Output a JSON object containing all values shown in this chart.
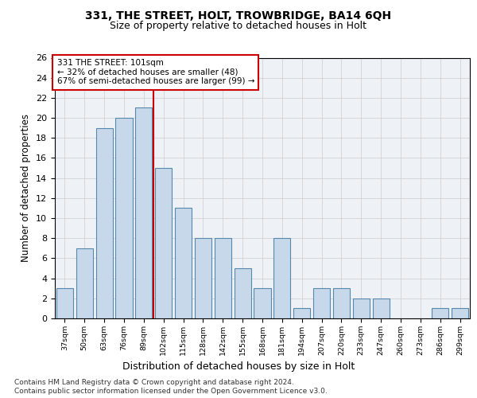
{
  "title1": "331, THE STREET, HOLT, TROWBRIDGE, BA14 6QH",
  "title2": "Size of property relative to detached houses in Holt",
  "xlabel": "Distribution of detached houses by size in Holt",
  "ylabel": "Number of detached properties",
  "annotation_line1": "331 THE STREET: 101sqm",
  "annotation_line2": "← 32% of detached houses are smaller (48)",
  "annotation_line3": "67% of semi-detached houses are larger (99) →",
  "bin_labels": [
    "37sqm",
    "50sqm",
    "63sqm",
    "76sqm",
    "89sqm",
    "102sqm",
    "115sqm",
    "128sqm",
    "142sqm",
    "155sqm",
    "168sqm",
    "181sqm",
    "194sqm",
    "207sqm",
    "220sqm",
    "233sqm",
    "247sqm",
    "260sqm",
    "273sqm",
    "286sqm",
    "299sqm"
  ],
  "bar_values": [
    3,
    7,
    19,
    20,
    21,
    15,
    11,
    8,
    8,
    5,
    3,
    8,
    1,
    3,
    3,
    2,
    2,
    0,
    0,
    1,
    1
  ],
  "bar_color": "#c8d8eb",
  "bar_edgecolor": "#5588aa",
  "vline_color": "#cc0000",
  "ylim": [
    0,
    26
  ],
  "yticks": [
    0,
    2,
    4,
    6,
    8,
    10,
    12,
    14,
    16,
    18,
    20,
    22,
    24,
    26
  ],
  "grid_color": "#cccccc",
  "background_color": "#eef2f7",
  "footnote1": "Contains HM Land Registry data © Crown copyright and database right 2024.",
  "footnote2": "Contains public sector information licensed under the Open Government Licence v3.0."
}
